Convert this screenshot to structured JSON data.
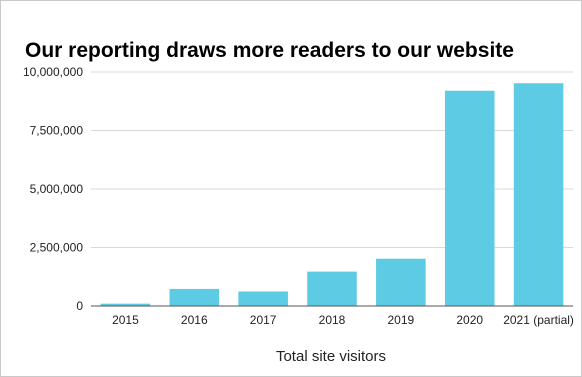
{
  "chart_data": {
    "type": "bar",
    "title": "Our reporting draws more readers to our website",
    "xlabel": "Total site visitors",
    "ylabel": "",
    "categories": [
      "2015",
      "2016",
      "2017",
      "2018",
      "2019",
      "2020",
      "2021 (partial)"
    ],
    "values": [
      100000,
      730000,
      620000,
      1470000,
      2020000,
      9200000,
      9520000
    ],
    "ylim": [
      0,
      10000000
    ],
    "yticks": [
      "0",
      "2,500,000",
      "5,000,000",
      "7,500,000",
      "10,000,000"
    ],
    "grid": true,
    "legend": "none",
    "bar_color": "#5ecbe5"
  }
}
